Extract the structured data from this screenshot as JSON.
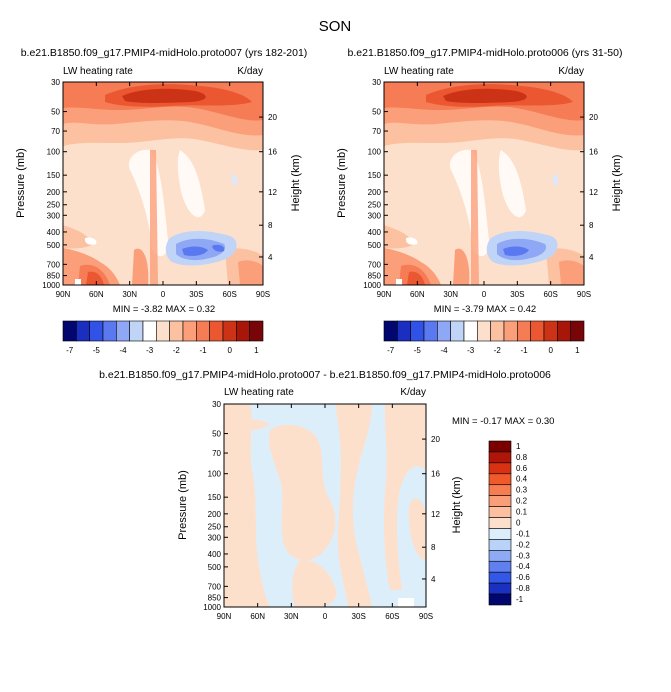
{
  "figure_title": "SON",
  "chart_data": [
    {
      "type": "heatmap",
      "title": "b.e21.B1850.f09_g17.PMIP4-midHolo.proto007 (yrs 182-201)",
      "left_label": "LW heating rate",
      "right_label": "K/day",
      "xlabel": "",
      "ylabel": "Pressure (mb)",
      "y2label": "Height (km)",
      "x_ticks": [
        "90N",
        "60N",
        "30N",
        "0",
        "30S",
        "60S",
        "90S"
      ],
      "y_ticks": [
        "30",
        "50",
        "70",
        "100",
        "150",
        "200",
        "250",
        "300",
        "400",
        "500",
        "700",
        "850",
        "1000"
      ],
      "y2_ticks": [
        "20",
        "16",
        "12",
        "8",
        "4"
      ],
      "stats": "MIN = -3.82  MAX =  0.32",
      "min": -3.82,
      "max": 0.32
    },
    {
      "type": "heatmap",
      "title": "b.e21.B1850.f09_g17.PMIP4-midHolo.proto006 (yrs 31-50)",
      "left_label": "LW heating rate",
      "right_label": "K/day",
      "xlabel": "",
      "ylabel": "Pressure (mb)",
      "y2label": "Height (km)",
      "x_ticks": [
        "90N",
        "60N",
        "30N",
        "0",
        "30S",
        "60S",
        "90S"
      ],
      "y_ticks": [
        "30",
        "50",
        "70",
        "100",
        "150",
        "200",
        "250",
        "300",
        "400",
        "500",
        "700",
        "850",
        "1000"
      ],
      "y2_ticks": [
        "20",
        "16",
        "12",
        "8",
        "4"
      ],
      "stats": "MIN = -3.79  MAX =  0.42",
      "min": -3.79,
      "max": 0.42
    },
    {
      "type": "heatmap",
      "title": "b.e21.B1850.f09_g17.PMIP4-midHolo.proto007 - b.e21.B1850.f09_g17.PMIP4-midHolo.proto006",
      "left_label": "LW heating rate",
      "right_label": "K/day",
      "xlabel": "",
      "ylabel": "Pressure (mb)",
      "y2label": "Height (km)",
      "x_ticks": [
        "90N",
        "60N",
        "30N",
        "0",
        "30S",
        "60S",
        "90S"
      ],
      "y_ticks": [
        "30",
        "50",
        "70",
        "100",
        "150",
        "200",
        "250",
        "300",
        "400",
        "500",
        "700",
        "850",
        "1000"
      ],
      "y2_ticks": [
        "20",
        "16",
        "12",
        "8",
        "4"
      ],
      "stats": "MIN =  -0.17  MAX =   0.30",
      "min": -0.17,
      "max": 0.3
    }
  ],
  "colorbar_top": {
    "labels": [
      "-7",
      "-5",
      "-4",
      "-3",
      "-2",
      "-1",
      "0",
      "1"
    ],
    "colors": [
      "#02066f",
      "#1a2ec0",
      "#3152e6",
      "#5a78f0",
      "#8ea8f5",
      "#c0d4f8",
      "#ffffff",
      "#fde0cb",
      "#fcc1a0",
      "#fb9f7a",
      "#f57c55",
      "#ea5730",
      "#cc3316",
      "#a81609",
      "#780508"
    ]
  },
  "colorbar_diff": {
    "labels": [
      "1",
      "0.8",
      "0.6",
      "0.4",
      "0.3",
      "0.2",
      "0.1",
      "0",
      "-0.1",
      "-0.2",
      "-0.3",
      "-0.4",
      "-0.6",
      "-0.8",
      "-1"
    ],
    "colors": [
      "#7a0000",
      "#b0150a",
      "#d93212",
      "#f05a2a",
      "#f77d50",
      "#fa9e7a",
      "#fcbfa0",
      "#fde0cc",
      "#ddeefb",
      "#b8d2f8",
      "#8eaaf4",
      "#5f80ee",
      "#3357e6",
      "#1a30c0",
      "#02066f"
    ]
  }
}
